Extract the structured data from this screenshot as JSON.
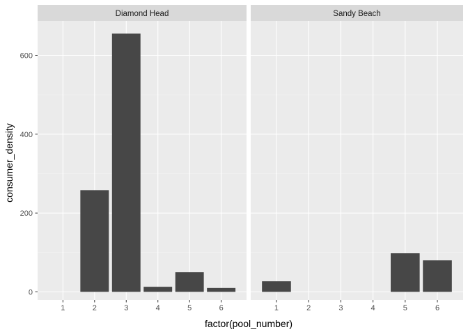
{
  "chart_data": {
    "type": "bar",
    "xlabel": "factor(pool_number)",
    "ylabel": "consumer_density",
    "ylim": [
      0,
      680
    ],
    "yticks": [
      0,
      200,
      400,
      600
    ],
    "categories": [
      "1",
      "2",
      "3",
      "4",
      "5",
      "6"
    ],
    "grid": true,
    "bar_color": "#474747",
    "panel_background": "#ebebeb",
    "strip_background": "#d9d9d9",
    "facets": [
      {
        "label": "Diamond Head",
        "values": [
          0,
          258,
          655,
          13,
          50,
          10
        ]
      },
      {
        "label": "Sandy Beach",
        "values": [
          27,
          0,
          0,
          0,
          98,
          80
        ]
      }
    ]
  }
}
